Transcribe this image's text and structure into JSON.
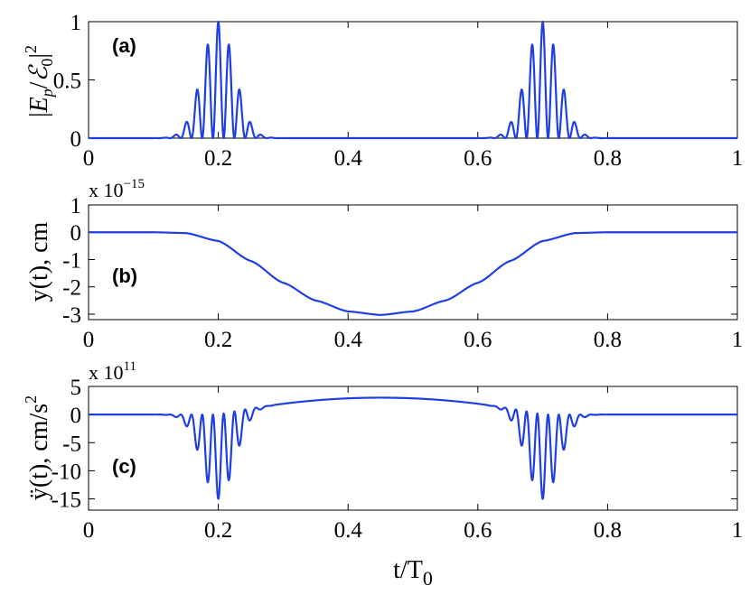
{
  "series_color": "#1f3fe6",
  "xlabel": "t/T",
  "xlabel_sub": "0",
  "chart_data": [
    {
      "panel": "(a)",
      "type": "line",
      "ylabel": "|E_p/ℰ_0|^2",
      "xlim": [
        0,
        1
      ],
      "ylim": [
        0,
        1
      ],
      "xticks": [
        0,
        0.2,
        0.4,
        0.6,
        0.8,
        1
      ],
      "xtick_labels": [
        "0",
        "0.2",
        "0.4",
        "0.6",
        "0.8",
        "1"
      ],
      "yticks": [
        0,
        0.5,
        1
      ],
      "ytick_labels": [
        "0",
        "0.5",
        "1"
      ],
      "exponent_label": "",
      "exponent_power": "",
      "description": "Two pulse trains of rapid oscillations with Gaussian envelope centered at t/T0 = 0.2 and 0.7, peak 1",
      "peaks": [
        {
          "center": 0.2,
          "width": 0.035,
          "amplitude": 1
        },
        {
          "center": 0.7,
          "width": 0.035,
          "amplitude": 1
        }
      ]
    },
    {
      "panel": "(b)",
      "type": "line",
      "ylabel": "y(t), cm",
      "xlim": [
        0,
        1
      ],
      "ylim": [
        -3.2,
        1
      ],
      "xticks": [
        0,
        0.2,
        0.4,
        0.6,
        0.8,
        1
      ],
      "xtick_labels": [
        "0",
        "0.2",
        "0.4",
        "0.6",
        "0.8",
        "1"
      ],
      "yticks": [
        1,
        0,
        -1,
        -2,
        -3
      ],
      "ytick_labels": [
        "1",
        "0",
        "-1",
        "-2",
        "-3"
      ],
      "exponent_label": "x 10",
      "exponent_power": "−15",
      "x": [
        0,
        0.1,
        0.15,
        0.2,
        0.25,
        0.3,
        0.35,
        0.4,
        0.45,
        0.5,
        0.55,
        0.6,
        0.65,
        0.7,
        0.75,
        0.8,
        0.9,
        1
      ],
      "y": [
        0,
        0,
        -0.03,
        -0.32,
        -1.05,
        -1.85,
        -2.5,
        -2.9,
        -3.03,
        -2.9,
        -2.5,
        -1.85,
        -1.05,
        -0.32,
        -0.03,
        0,
        0,
        0
      ]
    },
    {
      "panel": "(c)",
      "type": "line",
      "ylabel": "ÿ(t), cm/s^2",
      "xlim": [
        0,
        1
      ],
      "ylim": [
        -17,
        5
      ],
      "xticks": [
        0,
        0.2,
        0.4,
        0.6,
        0.8,
        1
      ],
      "xtick_labels": [
        "0",
        "0.2",
        "0.4",
        "0.6",
        "0.8",
        "1"
      ],
      "yticks": [
        5,
        0,
        -5,
        -10,
        -15
      ],
      "ytick_labels": [
        "5",
        "0",
        "-5",
        "-10",
        "-15"
      ],
      "exponent_label": "x 10",
      "exponent_power": "11",
      "description": "Oscillating negative pulse trains (min -15) at 0.2 and 0.7 with smooth positive hump (~3) in between",
      "peaks": [
        {
          "center": 0.2,
          "width": 0.035,
          "amplitude": -15
        },
        {
          "center": 0.7,
          "width": 0.035,
          "amplitude": -15
        }
      ],
      "hump": {
        "from": 0.25,
        "to": 0.65,
        "peak": 3
      }
    }
  ]
}
